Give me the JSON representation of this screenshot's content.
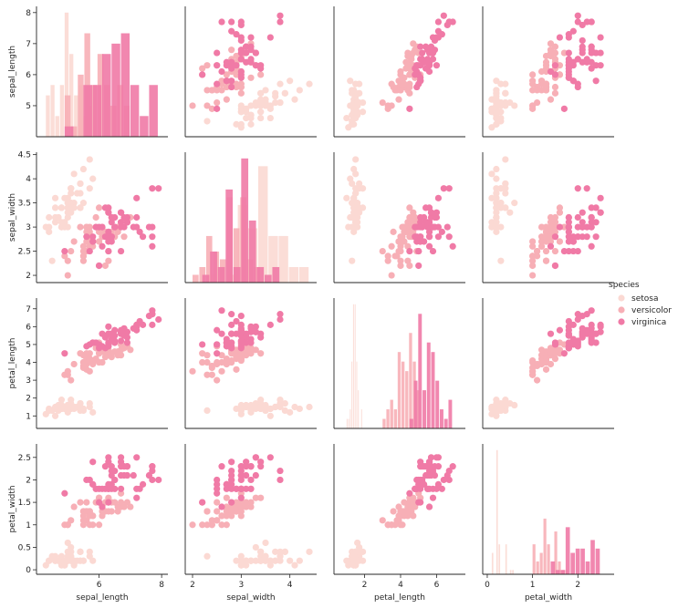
{
  "chart_data": {
    "type": "scatter",
    "title": "",
    "variables": [
      "sepal_length",
      "sepal_width",
      "petal_length",
      "petal_width"
    ],
    "axes": {
      "sepal_length": {
        "lim": [
          4.0,
          8.2
        ],
        "ticks": [
          6,
          8
        ],
        "yticks": [
          5,
          6,
          7,
          8
        ]
      },
      "sepal_width": {
        "lim": [
          1.85,
          4.55
        ],
        "ticks": [
          2,
          3,
          4
        ],
        "yticks": [
          2.0,
          2.5,
          3.0,
          3.5,
          4.0,
          4.5
        ],
        "ylim": [
          1.85,
          4.55
        ]
      },
      "petal_length": {
        "lim": [
          0.3,
          7.6
        ],
        "ticks": [
          2,
          4,
          6
        ],
        "yticks": [
          1,
          2,
          3,
          4,
          5,
          6,
          7
        ]
      },
      "petal_width": {
        "lim": [
          -0.1,
          2.8
        ],
        "ticks": [
          0,
          1,
          2
        ],
        "yticks": [
          0.0,
          0.5,
          1.0,
          1.5,
          2.0,
          2.5
        ]
      }
    },
    "diag_ylim": {
      "sepal_length": [
        4.0,
        8.2
      ],
      "sepal_width": [
        1.85,
        4.55
      ],
      "petal_length": [
        0.3,
        7.6
      ],
      "petal_width": [
        -0.1,
        2.8
      ]
    },
    "legend": {
      "title": "species",
      "placement": "right"
    },
    "grid": false,
    "series": [
      {
        "name": "setosa",
        "color": "#fbd9d3",
        "sepal_length": [
          5.1,
          4.9,
          4.7,
          4.6,
          5.0,
          5.4,
          4.6,
          5.0,
          4.4,
          4.9,
          5.4,
          4.8,
          4.8,
          4.3,
          5.8,
          5.7,
          5.4,
          5.1,
          5.7,
          5.1,
          5.4,
          5.1,
          4.6,
          5.1,
          4.8,
          5.0,
          5.0,
          5.2,
          5.2,
          4.7,
          4.8,
          5.4,
          5.2,
          5.5,
          4.9,
          5.0,
          5.5,
          4.9,
          4.4,
          5.1,
          5.0,
          4.5,
          4.4,
          5.0,
          5.1,
          4.8,
          5.1,
          4.6,
          5.3,
          5.0
        ],
        "sepal_width": [
          3.5,
          3.0,
          3.2,
          3.1,
          3.6,
          3.9,
          3.4,
          3.4,
          2.9,
          3.1,
          3.7,
          3.4,
          3.0,
          3.0,
          4.0,
          4.4,
          3.9,
          3.5,
          3.8,
          3.8,
          3.4,
          3.7,
          3.6,
          3.3,
          3.4,
          3.0,
          3.4,
          3.5,
          3.4,
          3.2,
          3.1,
          3.4,
          4.1,
          4.2,
          3.1,
          3.2,
          3.5,
          3.6,
          3.0,
          3.4,
          3.5,
          2.3,
          3.2,
          3.5,
          3.8,
          3.0,
          3.8,
          3.2,
          3.7,
          3.3
        ],
        "petal_length": [
          1.4,
          1.4,
          1.3,
          1.5,
          1.4,
          1.7,
          1.4,
          1.5,
          1.4,
          1.5,
          1.5,
          1.6,
          1.4,
          1.1,
          1.2,
          1.5,
          1.3,
          1.4,
          1.7,
          1.5,
          1.7,
          1.5,
          1.0,
          1.7,
          1.9,
          1.6,
          1.6,
          1.5,
          1.4,
          1.6,
          1.6,
          1.5,
          1.5,
          1.4,
          1.5,
          1.2,
          1.3,
          1.4,
          1.3,
          1.5,
          1.3,
          1.3,
          1.3,
          1.6,
          1.9,
          1.4,
          1.6,
          1.4,
          1.5,
          1.4
        ],
        "petal_width": [
          0.2,
          0.2,
          0.2,
          0.2,
          0.2,
          0.4,
          0.3,
          0.2,
          0.2,
          0.1,
          0.2,
          0.2,
          0.1,
          0.1,
          0.2,
          0.4,
          0.4,
          0.3,
          0.3,
          0.3,
          0.2,
          0.4,
          0.2,
          0.5,
          0.2,
          0.2,
          0.4,
          0.2,
          0.2,
          0.2,
          0.2,
          0.4,
          0.1,
          0.2,
          0.2,
          0.2,
          0.2,
          0.1,
          0.2,
          0.2,
          0.3,
          0.3,
          0.2,
          0.6,
          0.4,
          0.3,
          0.2,
          0.2,
          0.2,
          0.2
        ]
      },
      {
        "name": "versicolor",
        "color": "#f7afb6",
        "sepal_length": [
          7.0,
          6.4,
          6.9,
          5.5,
          6.5,
          5.7,
          6.3,
          4.9,
          6.6,
          5.2,
          5.0,
          5.9,
          6.0,
          6.1,
          5.6,
          6.7,
          5.6,
          5.8,
          6.2,
          5.6,
          5.9,
          6.1,
          6.3,
          6.1,
          6.4,
          6.6,
          6.8,
          6.7,
          6.0,
          5.7,
          5.5,
          5.5,
          5.8,
          6.0,
          5.4,
          6.0,
          6.7,
          6.3,
          5.6,
          5.5,
          5.5,
          6.1,
          5.8,
          5.0,
          5.6,
          5.7,
          5.7,
          6.2,
          5.1,
          5.7
        ],
        "sepal_width": [
          3.2,
          3.2,
          3.1,
          2.3,
          2.8,
          2.8,
          3.3,
          2.4,
          2.9,
          2.7,
          2.0,
          3.0,
          2.2,
          2.9,
          2.9,
          3.1,
          3.0,
          2.7,
          2.2,
          2.5,
          3.2,
          2.8,
          2.5,
          2.8,
          2.9,
          3.0,
          2.8,
          3.0,
          2.9,
          2.6,
          2.4,
          2.4,
          2.7,
          2.7,
          3.0,
          3.4,
          3.1,
          2.3,
          3.0,
          2.5,
          2.6,
          3.0,
          2.6,
          2.3,
          2.7,
          3.0,
          2.9,
          2.9,
          2.5,
          2.8
        ],
        "petal_length": [
          4.7,
          4.5,
          4.9,
          4.0,
          4.6,
          4.5,
          4.7,
          3.3,
          4.6,
          3.9,
          3.5,
          4.2,
          4.0,
          4.7,
          3.6,
          4.4,
          4.5,
          4.1,
          4.5,
          3.9,
          4.8,
          4.0,
          4.9,
          4.7,
          4.3,
          4.4,
          4.8,
          5.0,
          4.5,
          3.5,
          3.8,
          3.7,
          3.9,
          5.1,
          4.5,
          4.5,
          4.7,
          4.4,
          4.1,
          4.0,
          4.4,
          4.6,
          4.0,
          3.3,
          4.2,
          4.2,
          4.2,
          4.3,
          3.0,
          4.1
        ],
        "petal_width": [
          1.4,
          1.5,
          1.5,
          1.3,
          1.5,
          1.3,
          1.6,
          1.0,
          1.3,
          1.4,
          1.0,
          1.5,
          1.0,
          1.4,
          1.3,
          1.4,
          1.5,
          1.0,
          1.5,
          1.1,
          1.8,
          1.3,
          1.5,
          1.2,
          1.3,
          1.4,
          1.4,
          1.7,
          1.5,
          1.0,
          1.1,
          1.0,
          1.2,
          1.6,
          1.5,
          1.6,
          1.5,
          1.3,
          1.3,
          1.3,
          1.2,
          1.4,
          1.2,
          1.0,
          1.3,
          1.2,
          1.3,
          1.3,
          1.1,
          1.3
        ]
      },
      {
        "name": "virginica",
        "color": "#f07aa6",
        "sepal_length": [
          6.3,
          5.8,
          7.1,
          6.3,
          6.5,
          7.6,
          4.9,
          7.3,
          6.7,
          7.2,
          6.5,
          6.4,
          6.8,
          5.7,
          5.8,
          6.4,
          6.5,
          7.7,
          7.7,
          6.0,
          6.9,
          5.6,
          7.7,
          6.3,
          6.7,
          7.2,
          6.2,
          6.1,
          6.4,
          7.2,
          7.4,
          7.9,
          6.4,
          6.3,
          6.1,
          7.7,
          6.3,
          6.4,
          6.0,
          6.9,
          6.7,
          6.9,
          5.8,
          6.8,
          6.7,
          6.7,
          6.3,
          6.5,
          6.2,
          5.9
        ],
        "sepal_width": [
          3.3,
          2.7,
          3.0,
          2.9,
          3.0,
          3.0,
          2.5,
          2.9,
          2.5,
          3.6,
          3.2,
          2.7,
          3.0,
          2.5,
          2.8,
          3.2,
          3.0,
          3.8,
          2.6,
          2.2,
          3.2,
          2.8,
          2.8,
          2.7,
          3.3,
          3.2,
          2.8,
          3.0,
          2.8,
          3.0,
          2.8,
          3.8,
          2.8,
          2.8,
          2.6,
          3.0,
          3.4,
          3.1,
          3.0,
          3.1,
          3.1,
          3.1,
          2.7,
          3.2,
          3.3,
          3.0,
          2.5,
          3.0,
          3.4,
          3.0
        ],
        "petal_length": [
          6.0,
          5.1,
          5.9,
          5.6,
          5.8,
          6.6,
          4.5,
          6.3,
          5.8,
          6.1,
          5.1,
          5.3,
          5.5,
          5.0,
          5.1,
          5.3,
          5.5,
          6.7,
          6.9,
          5.0,
          5.7,
          4.9,
          6.7,
          4.9,
          5.7,
          6.0,
          4.8,
          4.9,
          5.6,
          5.8,
          6.1,
          6.4,
          5.6,
          5.1,
          5.6,
          6.1,
          5.6,
          5.5,
          4.8,
          5.4,
          5.6,
          5.1,
          5.1,
          5.9,
          5.7,
          5.2,
          5.0,
          5.2,
          5.4,
          5.1
        ],
        "petal_width": [
          2.5,
          1.9,
          2.1,
          1.8,
          2.2,
          2.1,
          1.7,
          1.8,
          1.8,
          2.5,
          2.0,
          1.9,
          2.1,
          2.0,
          2.4,
          2.3,
          1.8,
          2.2,
          2.3,
          1.5,
          2.3,
          2.0,
          2.0,
          1.8,
          2.1,
          1.8,
          1.8,
          1.8,
          2.1,
          1.6,
          1.9,
          2.0,
          2.2,
          1.5,
          1.4,
          2.3,
          2.4,
          1.8,
          1.8,
          2.1,
          2.4,
          2.3,
          1.9,
          2.3,
          2.5,
          2.3,
          1.9,
          2.0,
          2.3,
          1.8
        ]
      }
    ]
  }
}
